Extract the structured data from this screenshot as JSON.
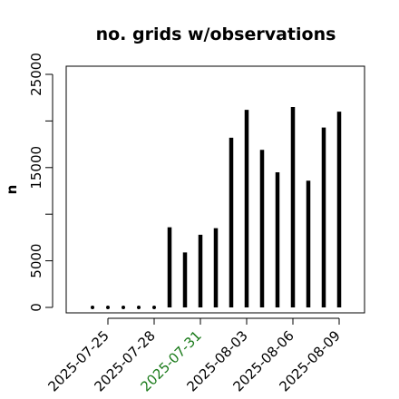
{
  "chart_data": {
    "type": "bar",
    "title": "no. grids w/observations",
    "xlabel": "",
    "ylabel": "n",
    "ylim": [
      0,
      25000
    ],
    "yticks": [
      0,
      5000,
      10000,
      15000,
      20000,
      25000
    ],
    "ytick_labels": [
      "0",
      "5000",
      "",
      "15000",
      "",
      "25000"
    ],
    "x_start": "2025-07-24",
    "x": [
      "2025-07-24",
      "2025-07-25",
      "2025-07-26",
      "2025-07-27",
      "2025-07-28",
      "2025-07-29",
      "2025-07-30",
      "2025-07-31",
      "2025-08-01",
      "2025-08-02",
      "2025-08-03",
      "2025-08-04",
      "2025-08-05",
      "2025-08-06",
      "2025-08-07",
      "2025-08-08",
      "2025-08-09"
    ],
    "values": [
      0,
      0,
      0,
      0,
      0,
      8600,
      5900,
      7800,
      8500,
      18200,
      21200,
      16900,
      14500,
      21500,
      13600,
      19300,
      21000
    ],
    "xticks": [
      "2025-07-25",
      "2025-07-28",
      "2025-07-31",
      "2025-08-03",
      "2025-08-06",
      "2025-08-09"
    ],
    "highlight_tick": "2025-07-31",
    "colors": {
      "bar": "#000000",
      "highlight": "#1a7a1a"
    },
    "grid": false,
    "legend": "none"
  }
}
